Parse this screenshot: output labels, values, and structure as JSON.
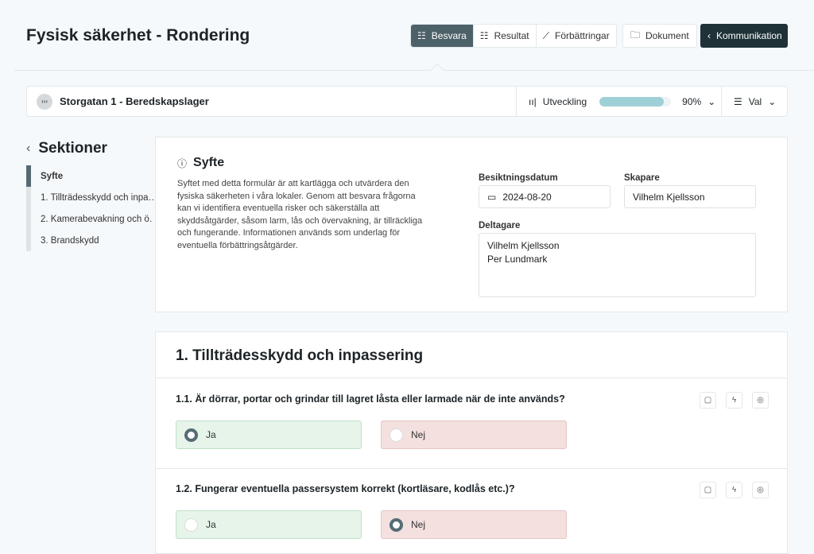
{
  "header": {
    "title": "Fysisk säkerhet - Rondering",
    "tabs": [
      {
        "label": "Besvara",
        "icon": "list-icon",
        "active": true
      },
      {
        "label": "Resultat",
        "icon": "list-icon"
      },
      {
        "label": "Förbättringar",
        "icon": "chart-icon"
      }
    ],
    "dokument": "Dokument",
    "kommunikation": "Kommunikation"
  },
  "bar": {
    "location": "Storgatan 1 - Beredskapslager",
    "progress_label": "Utveckling",
    "progress": 90,
    "progress_text": "90%",
    "val": "Val"
  },
  "sidebar": {
    "title": "Sektioner",
    "items": [
      {
        "label": "Syfte",
        "active": true
      },
      {
        "label": "1. Tillträdesskydd och inpa…"
      },
      {
        "label": "2. Kamerabevakning och ö…"
      },
      {
        "label": "3. Brandskydd"
      }
    ]
  },
  "syfte": {
    "title": "Syfte",
    "text": "Syftet med detta formulär är att kartlägga och utvärdera den fysiska säkerheten i våra lokaler. Genom att besvara frågorna kan vi identifiera eventuella risker och säkerställa att skyddsåtgärder, såsom larm, lås och övervakning, är tillräckliga och fungerande. Informationen används som underlag för eventuella förbättringsåtgärder.",
    "date_label": "Besiktningsdatum",
    "date": "2024-08-20",
    "creator_label": "Skapare",
    "creator": "Vilhelm Kjellsson",
    "participants_label": "Deltagare",
    "participants": [
      "Vilhelm Kjellsson",
      "Per Lundmark"
    ]
  },
  "section1": {
    "title": "1. Tillträdesskydd och inpassering",
    "questions": [
      {
        "text": "1.1. Är dörrar, portar och grindar till lagret låsta eller larmade när de inte används?",
        "yes": "Ja",
        "no": "Nej",
        "answer": "Ja"
      },
      {
        "text": "1.2. Fungerar eventuella passersystem korrekt (kortläsare, kodlås etc.)?",
        "yes": "Ja",
        "no": "Nej",
        "answer": "Nej"
      }
    ]
  }
}
